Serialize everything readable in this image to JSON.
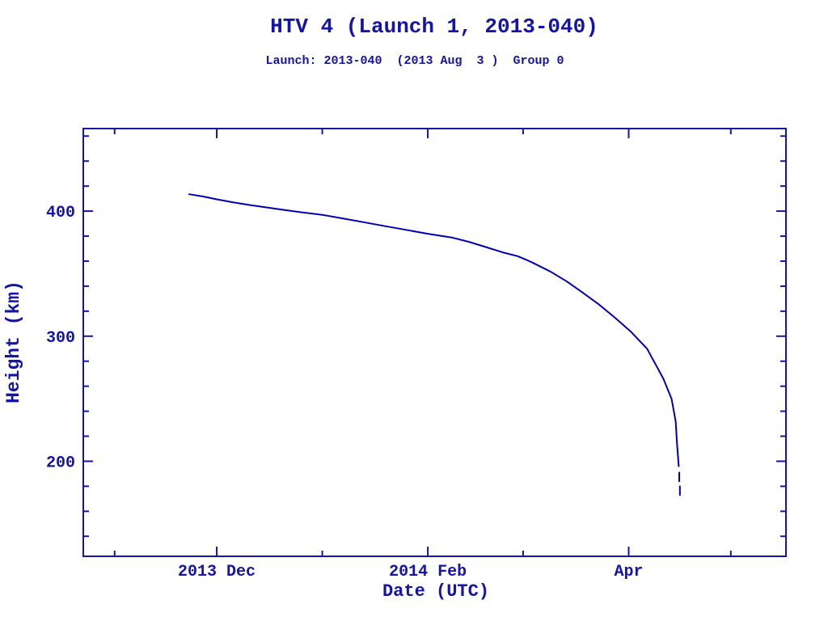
{
  "header": {
    "title": "HTV 4 (Launch 1, 2013-040)",
    "subtitle": "Launch: 2013-040  (2013 Aug  3 )  Group 0"
  },
  "colors": {
    "ink": "#1414a8",
    "curve": "#0000b0",
    "background": "#ffffff"
  },
  "chart_data": {
    "type": "line",
    "title": "HTV 4 (Launch 1, 2013-040)",
    "subtitle": "Launch: 2013-040  (2013 Aug  3 )  Group 0",
    "xlabel": "Date (UTC)",
    "ylabel": "Height (km)",
    "grid": false,
    "frame": "closed box with inward ticks on all four sides",
    "x_unit": "days since 2013 Nov 1 (UTC)",
    "x_range": [
      -9.2,
      197.2
    ],
    "y_range": [
      124,
      466
    ],
    "x_ticks": [
      {
        "day": 0,
        "date": "2013 Nov 1",
        "label": "",
        "major": false
      },
      {
        "day": 30,
        "date": "2013 Dec 1",
        "label": "2013 Dec",
        "major": true
      },
      {
        "day": 61,
        "date": "2014 Jan 1",
        "label": "",
        "major": false
      },
      {
        "day": 92,
        "date": "2014 Feb 1",
        "label": "2014 Feb",
        "major": true
      },
      {
        "day": 120,
        "date": "2014 Mar 1",
        "label": "",
        "major": false
      },
      {
        "day": 151,
        "date": "2014 Apr 1",
        "label": "Apr",
        "major": true
      },
      {
        "day": 181,
        "date": "2014 May 1",
        "label": "",
        "major": false
      }
    ],
    "y_ticks": {
      "start": 140,
      "end": 460,
      "step": 20,
      "major_every": 100,
      "major_labels": [
        "200",
        "300",
        "400"
      ]
    },
    "start_point": {
      "date": "2013 Nov 23",
      "height_km": 413
    },
    "end_point": {
      "date": "2014 Apr 16",
      "height_km": 174
    },
    "series": [
      {
        "name": "orbital height",
        "color": "#0000b0",
        "points": [
          [
            21.9,
            413.5
          ],
          [
            26.0,
            411.7
          ],
          [
            30.0,
            409.4
          ],
          [
            35.0,
            406.9
          ],
          [
            40.0,
            404.8
          ],
          [
            45.0,
            402.8
          ],
          [
            50.0,
            400.9
          ],
          [
            55.0,
            399.0
          ],
          [
            61.0,
            397.0
          ],
          [
            67.0,
            394.2
          ],
          [
            73.0,
            391.2
          ],
          [
            79.0,
            388.2
          ],
          [
            85.0,
            385.3
          ],
          [
            92.0,
            381.9
          ],
          [
            99.0,
            378.9
          ],
          [
            104.0,
            375.5
          ],
          [
            109.0,
            371.3
          ],
          [
            114.0,
            367.0
          ],
          [
            118.4,
            364.0
          ],
          [
            121.0,
            361.0
          ],
          [
            123.0,
            358.5
          ],
          [
            128.0,
            351.7
          ],
          [
            132.7,
            344.0
          ],
          [
            137.4,
            335.0
          ],
          [
            142.2,
            325.5
          ],
          [
            146.9,
            315.0
          ],
          [
            151.7,
            303.5
          ],
          [
            156.4,
            290.0
          ],
          [
            158.8,
            278.0
          ],
          [
            161.2,
            266.0
          ],
          [
            163.6,
            250.0
          ],
          [
            164.8,
            232.0
          ],
          [
            165.2,
            214.0
          ],
          [
            165.7,
            196.0
          ]
        ],
        "tail_dashes": [
          {
            "day": 165.85,
            "km_from": 191,
            "km_to": 184
          },
          {
            "day": 166.05,
            "km_from": 180,
            "km_to": 173
          }
        ]
      }
    ]
  }
}
